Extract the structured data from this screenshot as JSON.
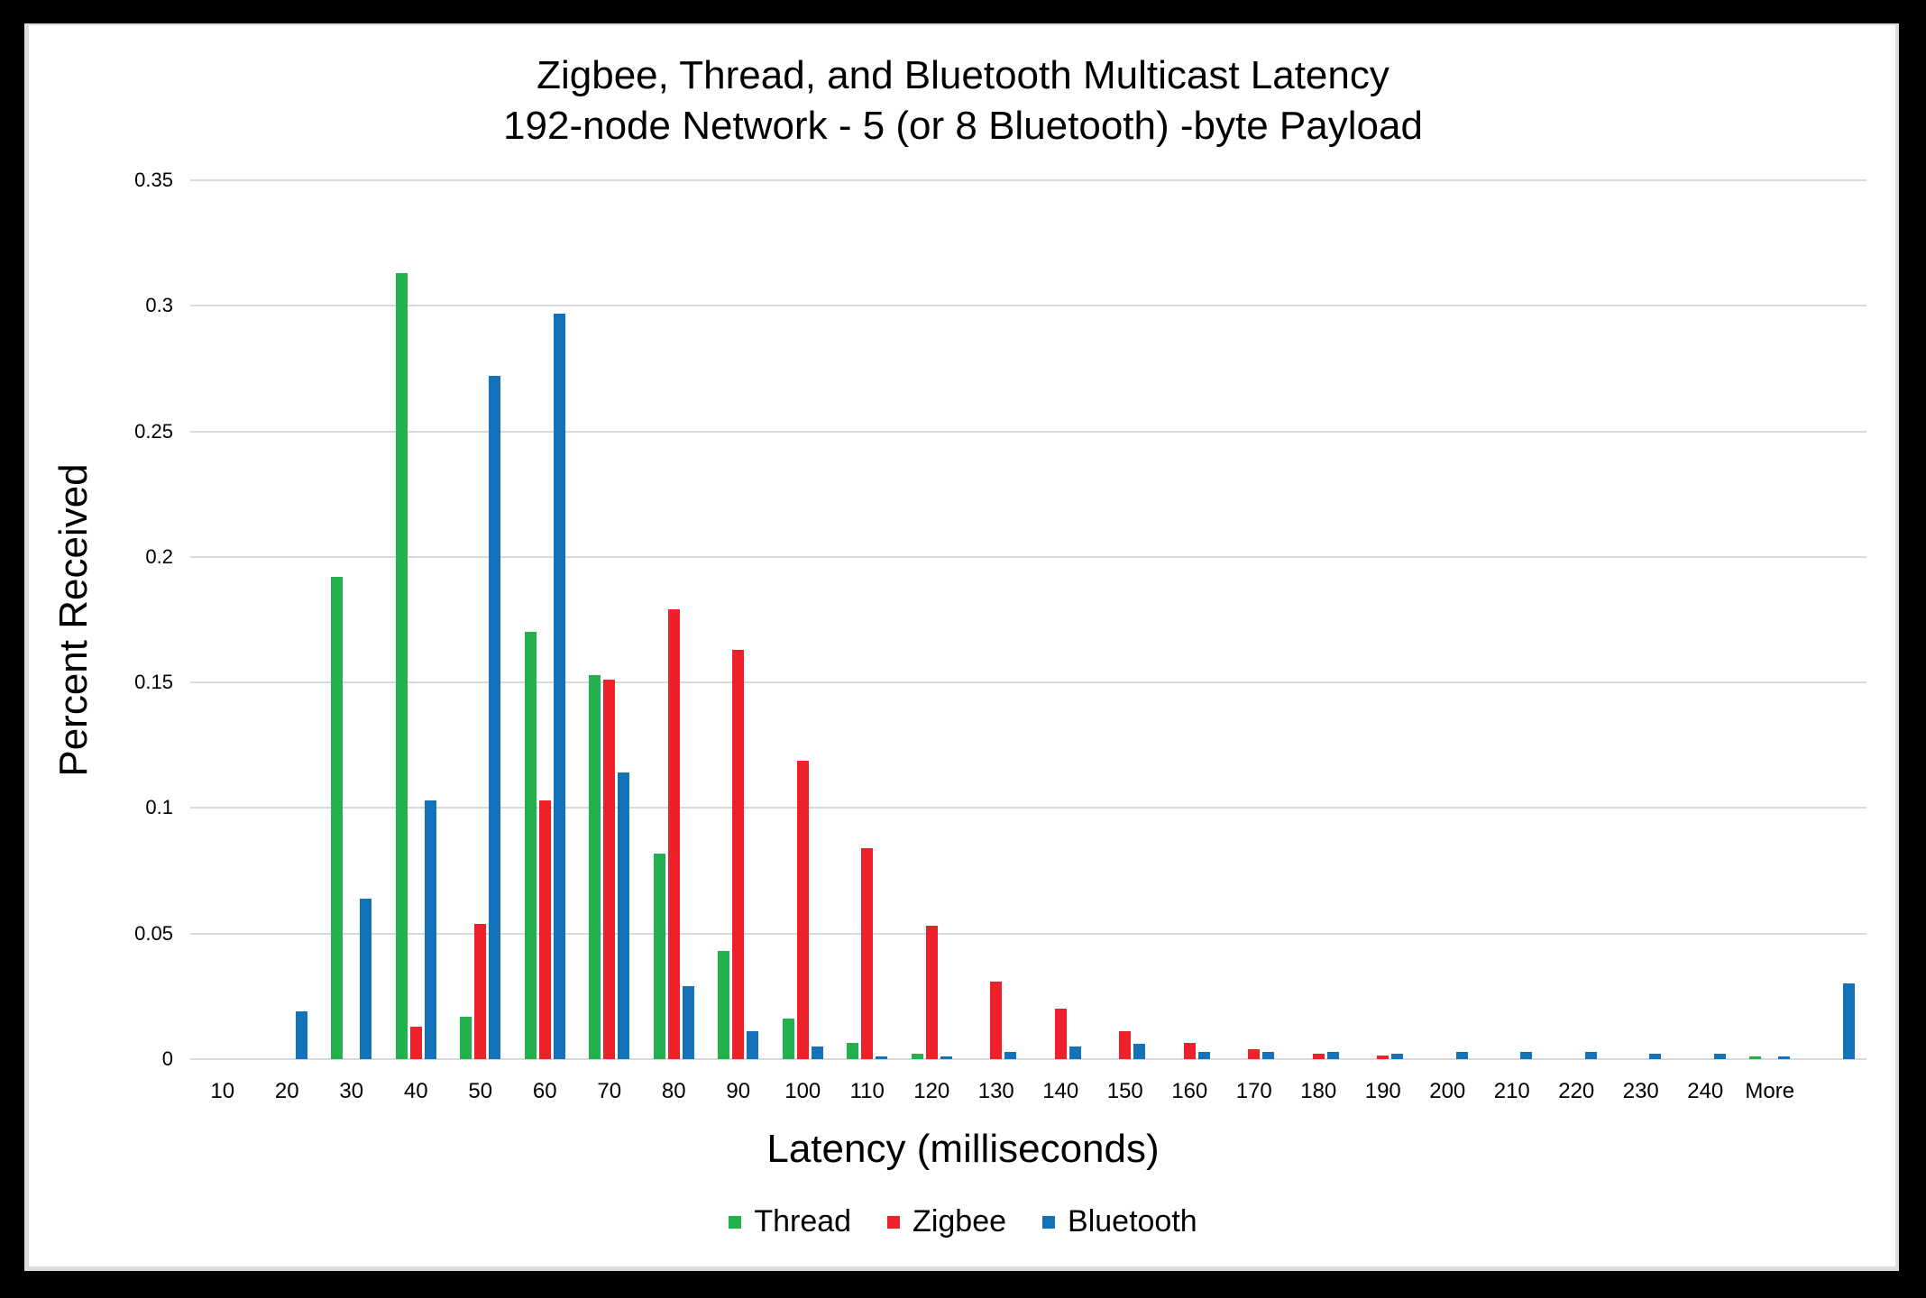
{
  "chart_data": {
    "type": "bar",
    "title": "Zigbee, Thread, and Bluetooth Multicast Latency",
    "subtitle": "192-node Network - 5 (or 8 Bluetooth) -byte Payload",
    "xlabel": "Latency (milliseconds)",
    "ylabel": "Percent Received",
    "ylim": [
      0,
      0.35
    ],
    "yticks": [
      "0",
      "0.05",
      "0.1",
      "0.15",
      "0.2",
      "0.25",
      "0.3",
      "0.35"
    ],
    "grid": true,
    "legend_position": "bottom",
    "categories": [
      "10",
      "20",
      "30",
      "40",
      "50",
      "60",
      "70",
      "80",
      "90",
      "100",
      "110",
      "120",
      "130",
      "140",
      "150",
      "160",
      "170",
      "180",
      "190",
      "200",
      "210",
      "220",
      "230",
      "240",
      "More",
      ""
    ],
    "series": [
      {
        "name": "Thread",
        "color": "#22B14C",
        "values": [
          0,
          0,
          0.192,
          0.313,
          0.017,
          0.17,
          0.153,
          0.082,
          0.043,
          0.016,
          0.0065,
          0.002,
          0,
          0,
          0,
          0,
          0,
          0,
          0,
          0,
          0,
          0,
          0,
          0,
          0.0012,
          0
        ]
      },
      {
        "name": "Zigbee",
        "color": "#ED2129",
        "values": [
          0,
          0,
          0,
          0.013,
          0.054,
          0.103,
          0.151,
          0.179,
          0.163,
          0.119,
          0.084,
          0.053,
          0.031,
          0.02,
          0.011,
          0.0065,
          0.004,
          0.002,
          0.0015,
          0,
          0,
          0,
          0,
          0,
          0,
          0
        ]
      },
      {
        "name": "Bluetooth",
        "color": "#1372BA",
        "values": [
          0,
          0.019,
          0.064,
          0.103,
          0.272,
          0.297,
          0.114,
          0.029,
          0.011,
          0.005,
          0.001,
          0.001,
          0.003,
          0.005,
          0.006,
          0.003,
          0.003,
          0.003,
          0.002,
          0.003,
          0.003,
          0.003,
          0.002,
          0.002,
          0.001,
          0.03
        ]
      }
    ]
  },
  "legend": {
    "items": [
      {
        "label": "Thread",
        "color": "#22B14C"
      },
      {
        "label": "Zigbee",
        "color": "#ED2129"
      },
      {
        "label": "Bluetooth",
        "color": "#1372BA"
      }
    ]
  }
}
